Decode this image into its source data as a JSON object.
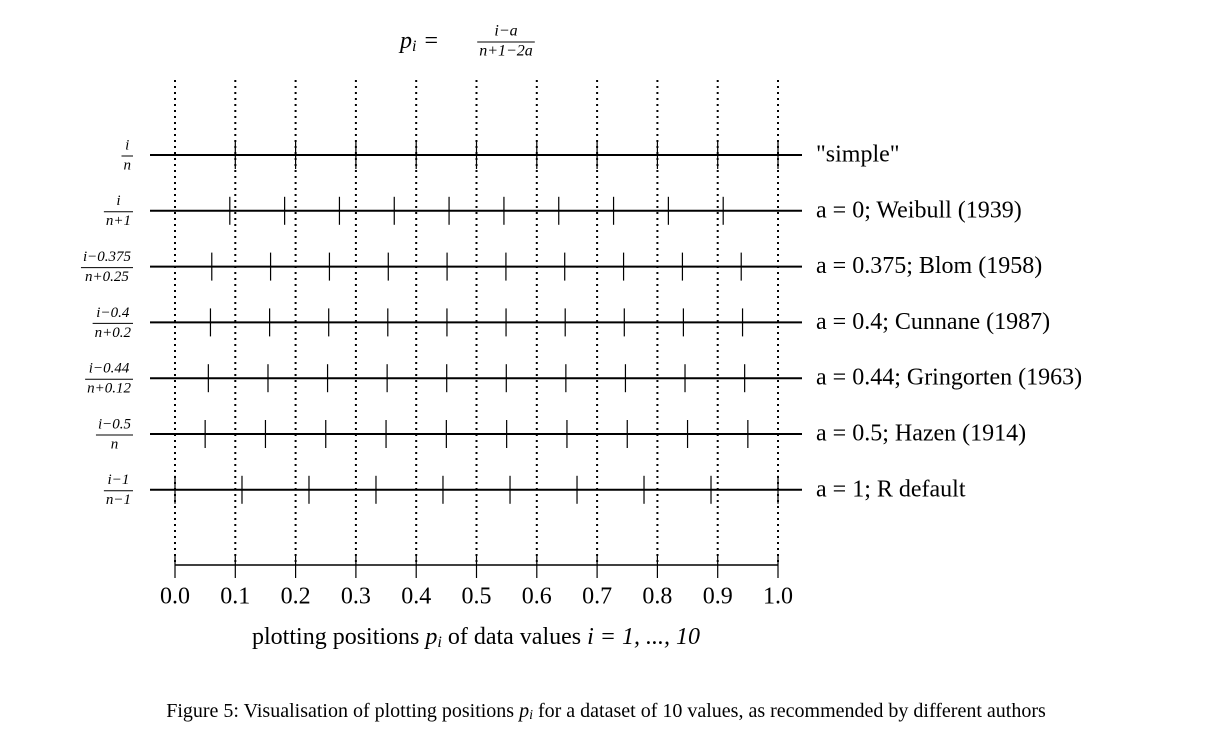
{
  "chart_data": {
    "type": "strip",
    "title": {
      "lhs": "p",
      "lhs_sub": "i",
      "equals": "=",
      "numerator": "i−a",
      "denominator": "n+1−2a"
    },
    "xlabel": [
      "plotting positions ",
      "p",
      "i",
      " of data values ",
      "i = 1, ..., 10"
    ],
    "caption": [
      "Figure 5: Visualisation of plotting positions ",
      "p",
      "i",
      " for a dataset of 10 values, as recommended by different authors"
    ],
    "xlim": [
      0,
      1
    ],
    "xticks": [
      {
        "value": 0,
        "label": "0.0"
      },
      0.1,
      0.2,
      0.3,
      0.4,
      0.5,
      0.6,
      0.7,
      0.8,
      0.9,
      {
        "value": 1,
        "label": "1.0"
      }
    ],
    "grid": true,
    "color": "#000000",
    "series": [
      {
        "name": "\"simple\"",
        "numerator": "i",
        "denominator": "n",
        "values": [
          0.1,
          0.2,
          0.3,
          0.4,
          0.5,
          0.6,
          0.7,
          0.8,
          0.9,
          1.0
        ]
      },
      {
        "name": "a = 0; Weibull (1939)",
        "numerator": "i",
        "denominator": "n+1",
        "values": [
          0.0909,
          0.1818,
          0.2727,
          0.3636,
          0.4545,
          0.5455,
          0.6364,
          0.7273,
          0.8182,
          0.9091
        ]
      },
      {
        "name": "a = 0.375; Blom (1958)",
        "numerator": "i−0.375",
        "denominator": "n+0.25",
        "values": [
          0.061,
          0.1585,
          0.2561,
          0.3537,
          0.4512,
          0.5488,
          0.6463,
          0.7439,
          0.8415,
          0.939
        ]
      },
      {
        "name": "a = 0.4; Cunnane (1987)",
        "numerator": "i−0.4",
        "denominator": "n+0.2",
        "values": [
          0.0588,
          0.1569,
          0.2549,
          0.3529,
          0.451,
          0.549,
          0.6471,
          0.7451,
          0.8431,
          0.9412
        ]
      },
      {
        "name": "a = 0.44; Gringorten (1963)",
        "numerator": "i−0.44",
        "denominator": "n+0.12",
        "values": [
          0.0553,
          0.1542,
          0.253,
          0.3518,
          0.4506,
          0.5494,
          0.6482,
          0.747,
          0.8458,
          0.9447
        ]
      },
      {
        "name": "a = 0.5; Hazen (1914)",
        "numerator": "i−0.5",
        "denominator": "n",
        "values": [
          0.05,
          0.15,
          0.25,
          0.35,
          0.45,
          0.55,
          0.65,
          0.75,
          0.85,
          0.95
        ]
      },
      {
        "name": "a = 1; R default",
        "numerator": "i−1",
        "denominator": "n−1",
        "values": [
          0,
          0.1111,
          0.2222,
          0.3333,
          0.4444,
          0.5556,
          0.6667,
          0.7778,
          0.8889,
          1.0
        ]
      }
    ]
  }
}
